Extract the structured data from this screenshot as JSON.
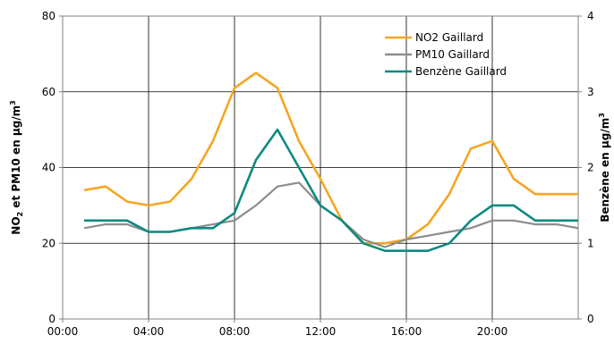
{
  "chart_data": {
    "type": "line",
    "x": [
      "01:00",
      "02:00",
      "03:00",
      "04:00",
      "05:00",
      "06:00",
      "07:00",
      "08:00",
      "09:00",
      "10:00",
      "11:00",
      "12:00",
      "13:00",
      "14:00",
      "15:00",
      "16:00",
      "17:00",
      "18:00",
      "19:00",
      "20:00",
      "21:00",
      "22:00",
      "23:00",
      "24:00"
    ],
    "x_ticks": [
      "00:00",
      "04:00",
      "08:00",
      "12:00",
      "16:00",
      "20:00"
    ],
    "ylabel": "NO2 et PM10 en µg/m3",
    "ylabel_parts": {
      "a": "NO",
      "sub": "2",
      "b": " et PM10 en µg/m",
      "sup": "3"
    },
    "y2label": "Benzène en µg/m3",
    "y2label_parts": {
      "a": "Benzène en µg/m",
      "sup": "3"
    },
    "ylim": [
      0,
      80
    ],
    "y2lim": [
      0,
      4
    ],
    "y_ticks": [
      "0",
      "20",
      "40",
      "60",
      "80"
    ],
    "y2_ticks": [
      "0",
      "1",
      "2",
      "3",
      "4"
    ],
    "grid": true,
    "legend_position": "top-right",
    "series": [
      {
        "name": "NO2 Gaillard",
        "axis": "left",
        "color": "#F5A623",
        "values": [
          34,
          35,
          31,
          30,
          31,
          37,
          47,
          61,
          65,
          61,
          47,
          37,
          26,
          20,
          20,
          21,
          25,
          33,
          45,
          47,
          37,
          33,
          33,
          33
        ]
      },
      {
        "name": "PM10 Gaillard",
        "axis": "left",
        "color": "#8C8C8C",
        "values": [
          24,
          25,
          25,
          23,
          23,
          24,
          25,
          26,
          30,
          35,
          36,
          30,
          26,
          21,
          19,
          21,
          22,
          23,
          24,
          26,
          26,
          25,
          25,
          24
        ]
      },
      {
        "name": "Benzène Gaillard",
        "axis": "right",
        "color": "#0E8A80",
        "values": [
          1.3,
          1.3,
          1.3,
          1.15,
          1.15,
          1.2,
          1.2,
          1.4,
          2.1,
          2.5,
          2.0,
          1.5,
          1.3,
          1.0,
          0.9,
          0.9,
          0.9,
          1.0,
          1.3,
          1.5,
          1.5,
          1.3,
          1.3,
          1.3
        ]
      }
    ]
  }
}
